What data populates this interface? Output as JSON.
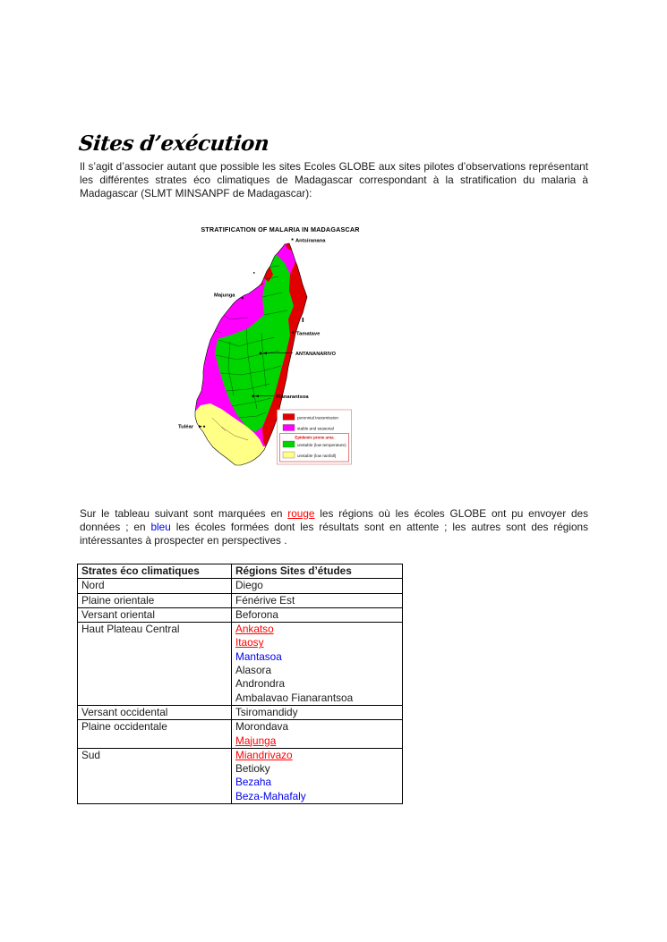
{
  "document": {
    "title": "Sites d’exécution",
    "paragraph1": "Il s’agit d’associer autant que possible les sites Ecoles GLOBE aux sites pilotes d’observations représentant les  différentes strates éco climatiques de Madagascar correspondant à la stratification du malaria à Madagascar (SLMT MINSANPF de Madagascar):",
    "paragraph2": {
      "seg1": "Sur le tableau suivant sont marquées en ",
      "rouge": "rouge",
      "seg2": " les régions où les écoles GLOBE ont pu envoyer des données ; en ",
      "bleu": "bleu",
      "seg3": " les écoles formées dont les résultats sont en attente ; les autres sont des régions intéressantes  à prospecter en perspectives ."
    }
  },
  "map": {
    "title": "STRATIFICATION OF MALARIA IN MADAGASCAR",
    "cities": [
      {
        "name": "Antsiranana"
      },
      {
        "name": "Majunga"
      },
      {
        "name": "Tamatave"
      },
      {
        "name": "ANTANANARIVO"
      },
      {
        "name": "Fianarantsoa"
      },
      {
        "name": "Tuléar"
      }
    ],
    "zone_colors": {
      "perennial": "#e00000",
      "stable_seasonal": "#ff00ff",
      "unstable_low_temp": "#00d500",
      "unstable_low_rain": "#ffff85"
    },
    "legend": {
      "epidemic_note": "Epidemic prone area",
      "epidemic_note_color": "#dd0000",
      "items": [
        {
          "label": "perennial transmission",
          "color": "#e00000"
        },
        {
          "label": "stable and seasonal",
          "color": "#ff00ff"
        },
        {
          "label": "unstable (low temperature)",
          "color": "#00d500"
        },
        {
          "label": "unstable (low rainfall)",
          "color": "#ffff85"
        }
      ]
    }
  },
  "table": {
    "headers": [
      "Strates éco climatiques",
      "Régions Sites d’études"
    ],
    "rows": [
      {
        "strate": "Nord",
        "sites": [
          {
            "name": "Diego",
            "color": "black"
          }
        ]
      },
      {
        "strate": "Plaine orientale",
        "sites": [
          {
            "name": "Fénérive Est",
            "color": "black"
          }
        ]
      },
      {
        "strate": "Versant oriental",
        "sites": [
          {
            "name": "Beforona",
            "color": "black"
          }
        ]
      },
      {
        "strate": "Haut Plateau Central",
        "sites": [
          {
            "name": "Ankatso",
            "color": "red"
          },
          {
            "name": "Itaosy",
            "color": "red"
          },
          {
            "name": "Mantasoa",
            "color": "blue"
          },
          {
            "name": "Alasora",
            "color": "black"
          },
          {
            "name": "Androndra",
            "color": "black"
          },
          {
            "name": "Ambalavao Fianarantsoa",
            "color": "black"
          }
        ]
      },
      {
        "strate": "Versant occidental",
        "sites": [
          {
            "name": "Tsiromandidy",
            "color": "black"
          }
        ]
      },
      {
        "strate": "Plaine occidentale",
        "sites": [
          {
            "name": "Morondava",
            "color": "black"
          },
          {
            "name": "Majunga",
            "color": "red"
          }
        ]
      },
      {
        "strate": "Sud",
        "sites": [
          {
            "name": "Miandrivazo",
            "color": "red"
          },
          {
            "name": "Betioky",
            "color": "black"
          },
          {
            "name": "Bezaha",
            "color": "blue"
          },
          {
            "name": "Beza-Mahafaly",
            "color": "blue"
          }
        ]
      }
    ]
  },
  "text_colors": {
    "data_sent": "#ff0000",
    "awaiting_results": "#0000ee"
  }
}
